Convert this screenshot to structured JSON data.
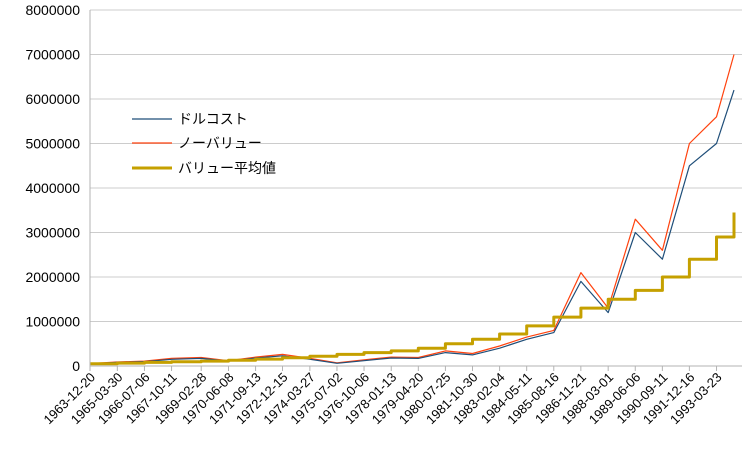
{
  "chart_data": {
    "type": "line",
    "title": "",
    "xlabel": "",
    "ylabel": "",
    "ylim": [
      0,
      8000000
    ],
    "y_ticks": [
      "0",
      "1000000",
      "2000000",
      "3000000",
      "4000000",
      "5000000",
      "6000000",
      "7000000",
      "8000000"
    ],
    "x_tick_labels": [
      "1963-12-20",
      "1965-03-30",
      "1966-07-06",
      "1967-10-11",
      "1969-02-28",
      "1970-06-08",
      "1971-09-13",
      "1972-12-15",
      "1974-03-27",
      "1975-07-02",
      "1976-10-06",
      "1978-01-13",
      "1979-04-20",
      "1980-07-25",
      "1981-10-30",
      "1983-02-04",
      "1984-05-11",
      "1985-08-16",
      "1986-11-21",
      "1988-03-01",
      "1989-06-06",
      "1990-09-11",
      "1991-12-16",
      "1993-03-23"
    ],
    "grid": true,
    "legend_position": "upper-left",
    "colors": {
      "dollar_cost": "#1f4e79",
      "no_value": "#ff420e",
      "value_avg": "#c5a000",
      "grid": "#cccccc",
      "axis": "#b3b3b3"
    },
    "series": [
      {
        "name": "ドルコスト",
        "x": [
          "1963-12-20",
          "1965-03-30",
          "1966-07-06",
          "1967-10-11",
          "1969-02-28",
          "1970-06-08",
          "1971-09-13",
          "1972-12-15",
          "1974-03-27",
          "1975-07-02",
          "1976-10-06",
          "1978-01-13",
          "1979-04-20",
          "1980-07-25",
          "1981-10-30",
          "1983-02-04",
          "1984-05-11",
          "1985-08-16",
          "1986-11-21",
          "1988-03-01",
          "1989-06-06",
          "1990-09-11",
          "1991-12-16",
          "1993-03-23",
          "1994-01-15"
        ],
        "values": [
          50000,
          80000,
          100000,
          150000,
          170000,
          110000,
          180000,
          230000,
          150000,
          60000,
          120000,
          180000,
          170000,
          300000,
          250000,
          400000,
          600000,
          750000,
          1900000,
          1200000,
          3000000,
          2400000,
          4500000,
          5000000,
          6200000
        ]
      },
      {
        "name": "ノーバリュー",
        "x": [
          "1963-12-20",
          "1965-03-30",
          "1966-07-06",
          "1967-10-11",
          "1969-02-28",
          "1970-06-08",
          "1971-09-13",
          "1972-12-15",
          "1974-03-27",
          "1975-07-02",
          "1976-10-06",
          "1978-01-13",
          "1979-04-20",
          "1980-07-25",
          "1981-10-30",
          "1983-02-04",
          "1984-05-11",
          "1985-08-16",
          "1986-11-21",
          "1988-03-01",
          "1989-06-06",
          "1990-09-11",
          "1991-12-16",
          "1993-03-23",
          "1994-01-15"
        ],
        "values": [
          55000,
          90000,
          110000,
          170000,
          190000,
          120000,
          200000,
          260000,
          170000,
          70000,
          140000,
          200000,
          190000,
          340000,
          280000,
          450000,
          650000,
          800000,
          2100000,
          1300000,
          3300000,
          2600000,
          5000000,
          5600000,
          7000000
        ]
      },
      {
        "name": "バリュー平均値",
        "x": [
          "1963-12-20",
          "1965-03-30",
          "1966-07-06",
          "1967-10-11",
          "1969-02-28",
          "1970-06-08",
          "1971-09-13",
          "1972-12-15",
          "1974-03-27",
          "1975-07-02",
          "1976-10-06",
          "1978-01-13",
          "1979-04-20",
          "1980-07-25",
          "1981-10-30",
          "1983-02-04",
          "1984-05-11",
          "1985-08-16",
          "1986-11-21",
          "1988-03-01",
          "1989-06-06",
          "1990-09-11",
          "1991-12-16",
          "1993-03-23",
          "1994-01-15"
        ],
        "values": [
          50000,
          65000,
          80000,
          95000,
          110000,
          130000,
          155000,
          185000,
          220000,
          260000,
          300000,
          340000,
          400000,
          500000,
          600000,
          720000,
          900000,
          1100000,
          1300000,
          1500000,
          1700000,
          2000000,
          2400000,
          2900000,
          3450000
        ],
        "step": true
      }
    ]
  }
}
